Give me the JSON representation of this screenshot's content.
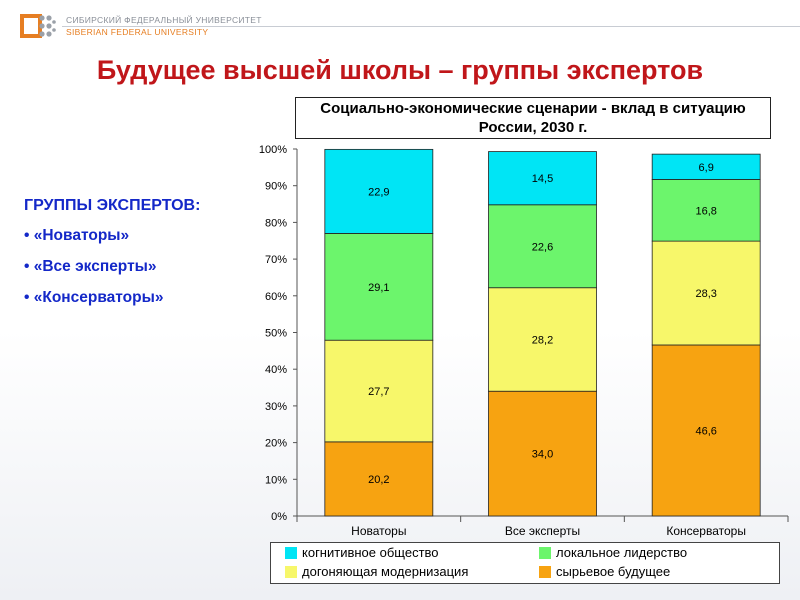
{
  "header": {
    "university_ru": "СИБИРСКИЙ ФЕДЕРАЛЬНЫЙ УНИВЕРСИТЕТ",
    "university_en": "SIBERIAN FEDERAL UNIVERSITY"
  },
  "page_title": "Будущее высшей школы – группы экспертов",
  "groups": {
    "heading": "ГРУППЫ ЭКСПЕРТОВ:",
    "items": [
      "«Новаторы»",
      "«Все эксперты»",
      "«Консерваторы»"
    ]
  },
  "colors": {
    "title": "#c0161a",
    "groups_text": "#1428c8",
    "cognitive": "#00e5f5",
    "local": "#6cf56c",
    "catching_up": "#f7f76a",
    "raw": "#f7a311"
  },
  "chart_data": {
    "type": "bar",
    "stacked": true,
    "normalized": true,
    "title": "Социально-экономические сценарии - вклад в ситуацию России, 2030 г.",
    "categories": [
      "Новаторы",
      "Все эксперты",
      "Консерваторы"
    ],
    "series": [
      {
        "name": "сырьевое будущее",
        "color": "#f7a311",
        "values": [
          20.2,
          34.0,
          46.6
        ],
        "labels": [
          "20,2",
          "34,0",
          "46,6"
        ]
      },
      {
        "name": "догоняющая модернизация",
        "color": "#f7f76a",
        "values": [
          27.7,
          28.2,
          28.3
        ],
        "labels": [
          "27,7",
          "28,2",
          "28,3"
        ]
      },
      {
        "name": "локальное лидерство",
        "color": "#6cf56c",
        "values": [
          29.1,
          22.6,
          16.8
        ],
        "labels": [
          "29,1",
          "22,6",
          "16,8"
        ]
      },
      {
        "name": "когнитивное общество",
        "color": "#00e5f5",
        "values": [
          22.9,
          14.5,
          6.9
        ],
        "labels": [
          "22,9",
          "14,5",
          "6,9"
        ]
      }
    ],
    "yticks": [
      "0%",
      "10%",
      "20%",
      "30%",
      "40%",
      "50%",
      "60%",
      "70%",
      "80%",
      "90%",
      "100%"
    ],
    "ylim": [
      0,
      100
    ],
    "legend": {
      "position": "bottom",
      "order": [
        "когнитивное общество",
        "локальное лидерство",
        "догоняющая модернизация",
        "сырьевое будущее"
      ]
    }
  }
}
